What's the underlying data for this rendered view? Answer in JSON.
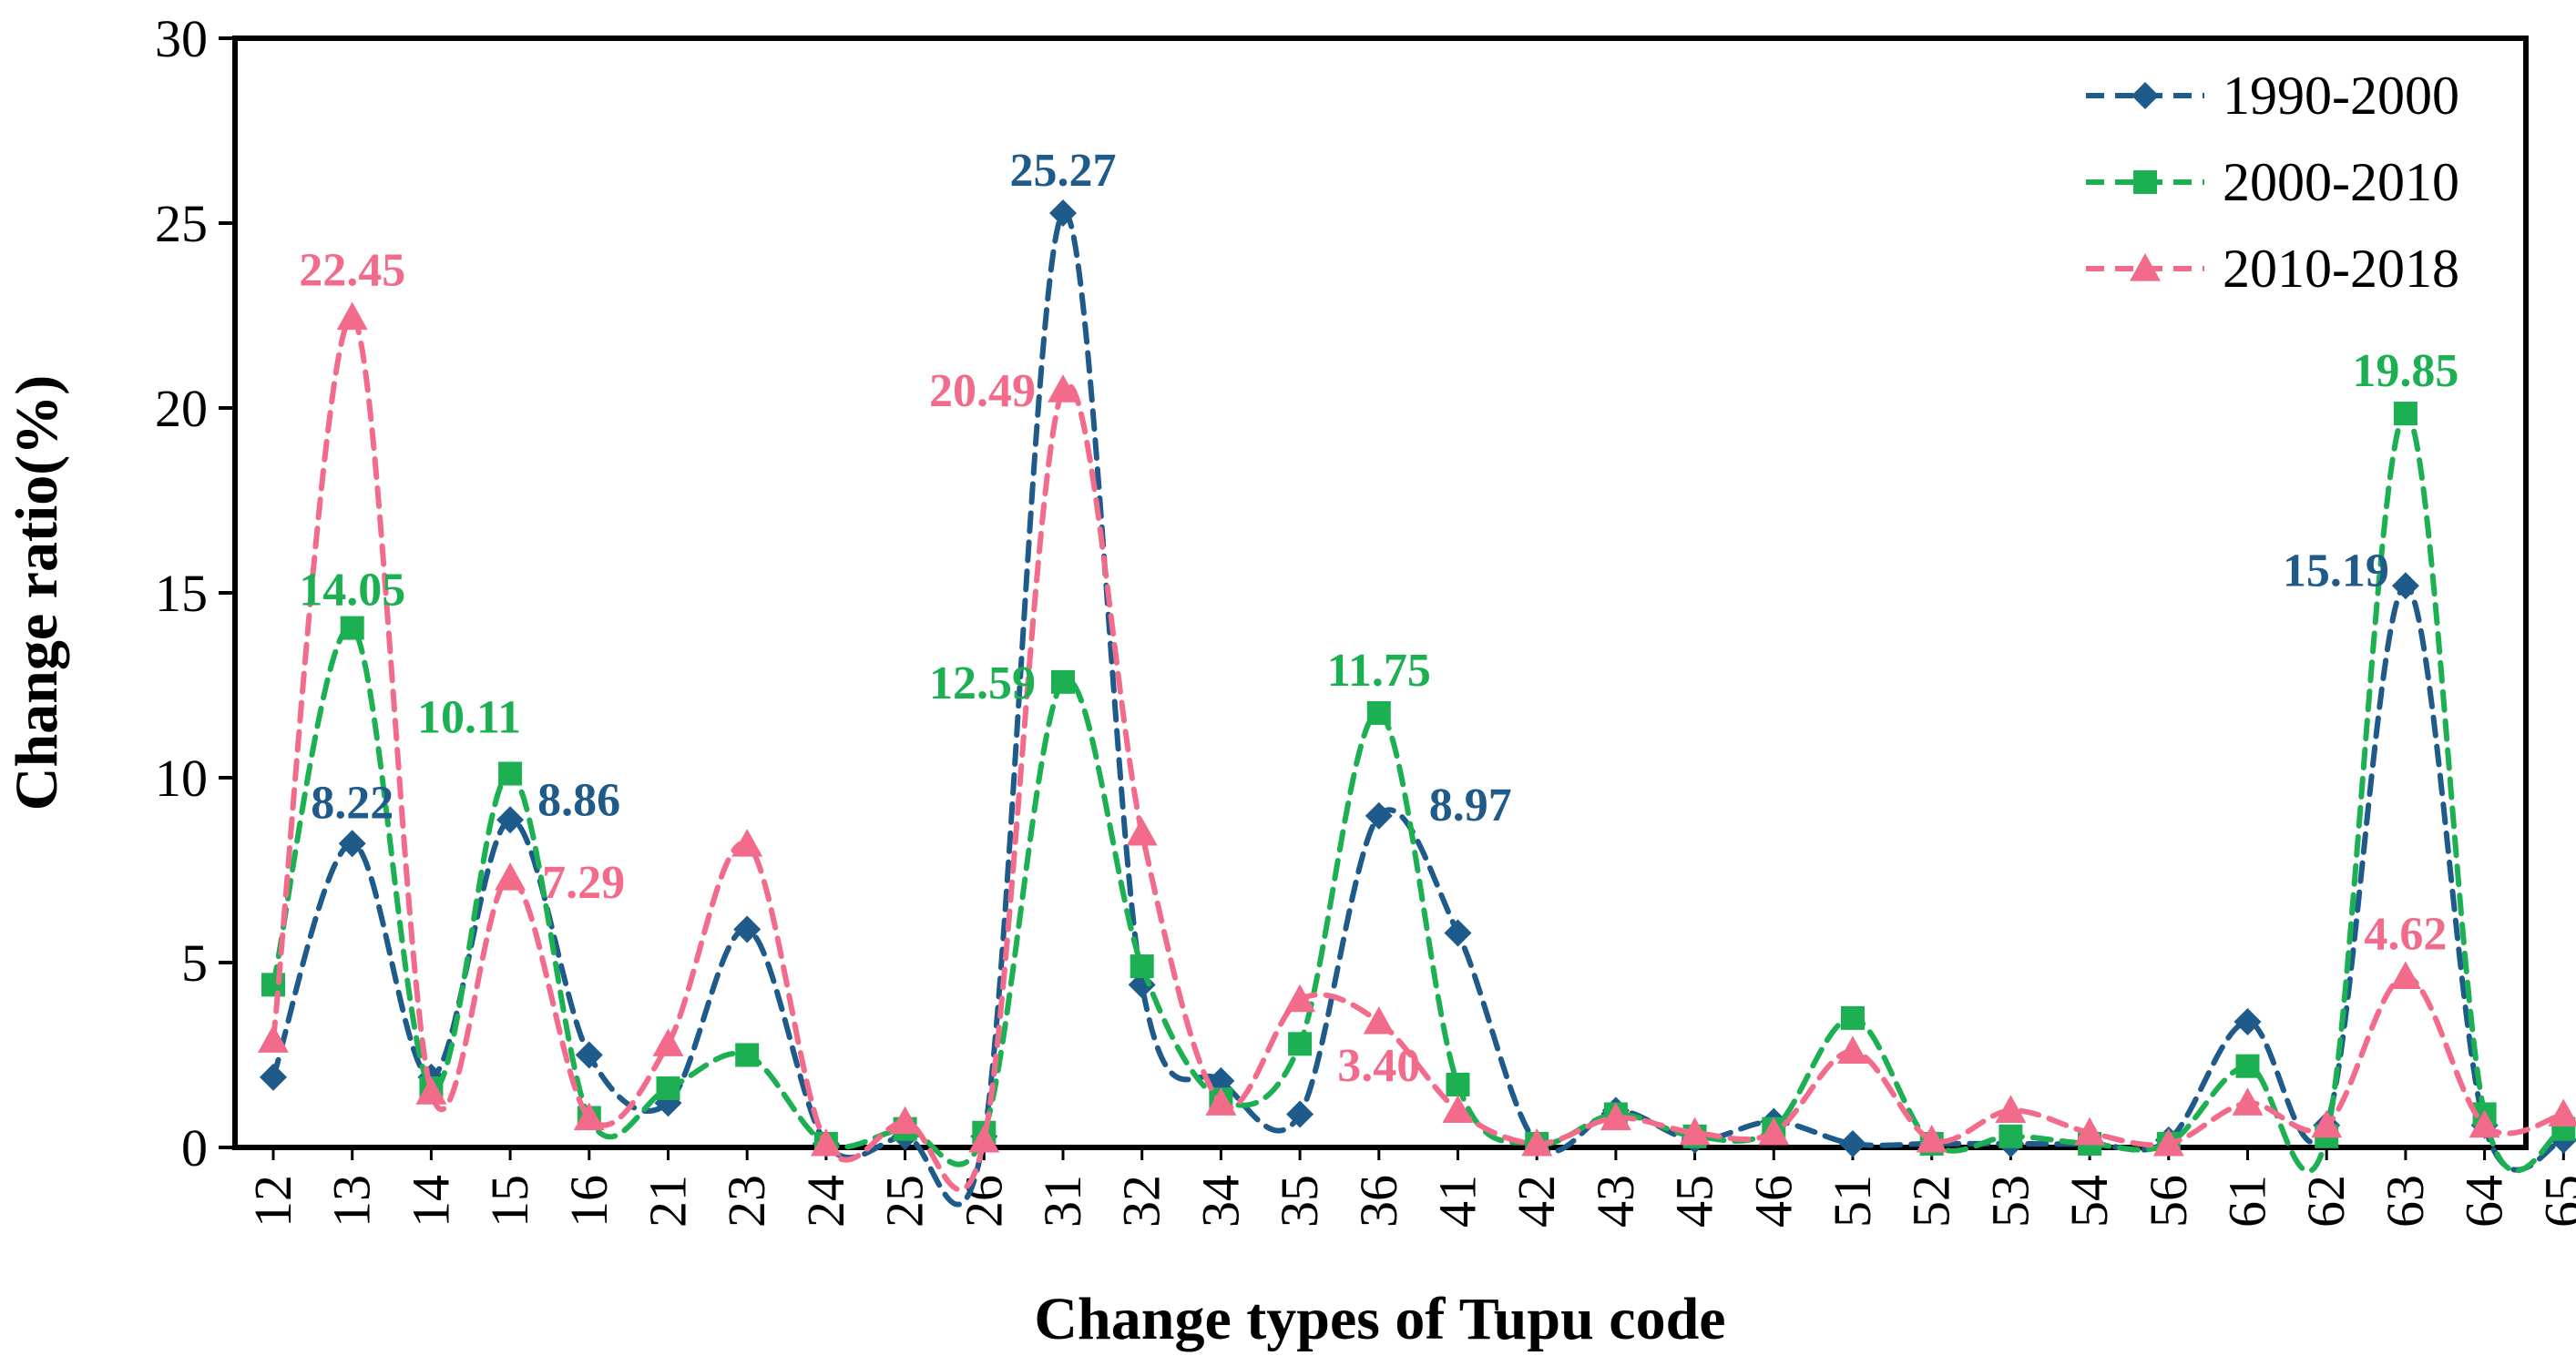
{
  "chart_data": {
    "type": "line",
    "title": "",
    "xlabel": "Change types of Tupu code",
    "ylabel": "Change ratio(%)",
    "ylim": [
      0,
      30
    ],
    "yticks": [
      0,
      5,
      10,
      15,
      20,
      25,
      30
    ],
    "grid": false,
    "legend_position": "top-right",
    "categories": [
      "12",
      "13",
      "14",
      "15",
      "16",
      "21",
      "23",
      "24",
      "25",
      "26",
      "31",
      "32",
      "34",
      "35",
      "36",
      "41",
      "42",
      "43",
      "45",
      "46",
      "51",
      "52",
      "53",
      "54",
      "56",
      "61",
      "62",
      "63",
      "64",
      "65"
    ],
    "series": [
      {
        "name": "1990-2000",
        "color": "#1F5B8A",
        "marker": "diamond",
        "values": [
          1.9,
          8.22,
          1.9,
          8.86,
          2.5,
          1.2,
          5.9,
          0.1,
          0.3,
          0.3,
          25.27,
          4.4,
          1.8,
          0.9,
          8.97,
          5.8,
          0.1,
          1.0,
          0.2,
          0.7,
          0.1,
          0.1,
          0.1,
          0.1,
          0.2,
          3.4,
          0.6,
          15.19,
          0.6,
          0.2
        ]
      },
      {
        "name": "2000-2010",
        "color": "#1DB052",
        "marker": "square",
        "values": [
          4.4,
          14.05,
          1.6,
          10.11,
          0.8,
          1.6,
          2.5,
          0.1,
          0.5,
          0.4,
          12.59,
          4.9,
          1.3,
          2.8,
          11.75,
          1.7,
          0.1,
          0.9,
          0.3,
          0.5,
          3.5,
          0.1,
          0.3,
          0.1,
          0.1,
          2.2,
          0.3,
          19.85,
          0.9,
          0.5
        ]
      },
      {
        "name": "2010-2018",
        "color": "#F26B8A",
        "marker": "triangle",
        "values": [
          2.9,
          22.45,
          1.5,
          7.29,
          0.8,
          2.8,
          8.2,
          0.1,
          0.7,
          0.2,
          20.49,
          8.5,
          1.2,
          4.0,
          3.4,
          1.0,
          0.1,
          0.8,
          0.4,
          0.4,
          2.6,
          0.2,
          1.0,
          0.4,
          0.1,
          1.2,
          0.6,
          4.62,
          0.6,
          0.9
        ]
      }
    ],
    "annotations": [
      {
        "series": 0,
        "category": "13",
        "text": "8.22"
      },
      {
        "series": 0,
        "category": "15",
        "text": "8.86"
      },
      {
        "series": 0,
        "category": "31",
        "text": "25.27"
      },
      {
        "series": 0,
        "category": "36",
        "text": "8.97"
      },
      {
        "series": 0,
        "category": "63",
        "text": "15.19"
      },
      {
        "series": 1,
        "category": "13",
        "text": "14.05"
      },
      {
        "series": 1,
        "category": "15",
        "text": "10.11"
      },
      {
        "series": 1,
        "category": "31",
        "text": "12.59"
      },
      {
        "series": 1,
        "category": "36",
        "text": "11.75"
      },
      {
        "series": 1,
        "category": "63",
        "text": "19.85"
      },
      {
        "series": 2,
        "category": "13",
        "text": "22.45"
      },
      {
        "series": 2,
        "category": "15",
        "text": "7.29"
      },
      {
        "series": 2,
        "category": "31",
        "text": "20.49"
      },
      {
        "series": 2,
        "category": "36",
        "text": "3.40"
      },
      {
        "series": 2,
        "category": "63",
        "text": "4.62"
      }
    ]
  }
}
